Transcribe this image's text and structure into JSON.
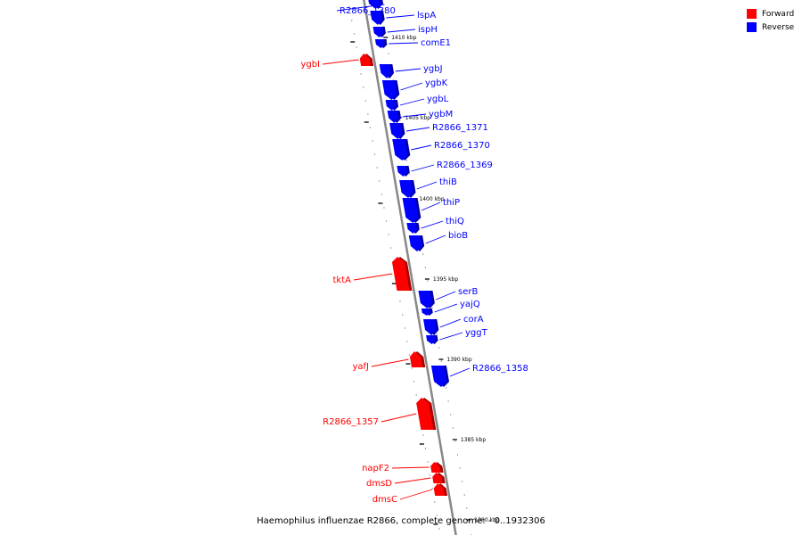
{
  "legend": {
    "forward_label": "Forward",
    "reverse_label": "Reverse",
    "forward_color": "#ff0000",
    "reverse_color": "#0000ff"
  },
  "caption": "Haemophilus influenzae R2866, complete genome: - 0..1932306",
  "axis_color": "#888888",
  "ticks": [
    {
      "label": "1410 kbp"
    },
    {
      "label": "1405 kbp"
    },
    {
      "label": "1400 kbp"
    },
    {
      "label": "1395 kbp"
    },
    {
      "label": "1390 kbp"
    },
    {
      "label": "1385 kbp"
    },
    {
      "label": "1380 kbp"
    }
  ],
  "genes": [
    {
      "name": "R2866_1380",
      "strand": "reverse"
    },
    {
      "name": "lspA",
      "strand": "reverse"
    },
    {
      "name": "ispH",
      "strand": "reverse"
    },
    {
      "name": "comE1",
      "strand": "reverse"
    },
    {
      "name": "ygbI",
      "strand": "forward"
    },
    {
      "name": "ygbJ",
      "strand": "reverse"
    },
    {
      "name": "ygbK",
      "strand": "reverse"
    },
    {
      "name": "ygbL",
      "strand": "reverse"
    },
    {
      "name": "ygbM",
      "strand": "reverse"
    },
    {
      "name": "R2866_1371",
      "strand": "reverse"
    },
    {
      "name": "R2866_1370",
      "strand": "reverse"
    },
    {
      "name": "R2866_1369",
      "strand": "reverse"
    },
    {
      "name": "thiB",
      "strand": "reverse"
    },
    {
      "name": "thiP",
      "strand": "reverse"
    },
    {
      "name": "thiQ",
      "strand": "reverse"
    },
    {
      "name": "bioB",
      "strand": "reverse"
    },
    {
      "name": "tktA",
      "strand": "forward"
    },
    {
      "name": "serB",
      "strand": "reverse"
    },
    {
      "name": "yajQ",
      "strand": "reverse"
    },
    {
      "name": "corA",
      "strand": "reverse"
    },
    {
      "name": "yggT",
      "strand": "reverse"
    },
    {
      "name": "yafJ",
      "strand": "forward"
    },
    {
      "name": "R2866_1358",
      "strand": "reverse"
    },
    {
      "name": "R2866_1357",
      "strand": "forward"
    },
    {
      "name": "napF2",
      "strand": "forward"
    },
    {
      "name": "dmsD",
      "strand": "forward"
    },
    {
      "name": "dmsC",
      "strand": "forward"
    }
  ]
}
